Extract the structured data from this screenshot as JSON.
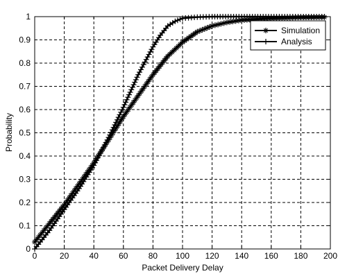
{
  "chart_data": {
    "type": "line",
    "title": "",
    "xlabel": "Packet Delivery Delay",
    "ylabel": "Probability",
    "xlim": [
      0,
      200
    ],
    "ylim": [
      0,
      1
    ],
    "xticks": [
      "0",
      "20",
      "40",
      "60",
      "80",
      "100",
      "120",
      "140",
      "160",
      "180",
      "200"
    ],
    "yticks": [
      "0",
      "0.1",
      "0.2",
      "0.3",
      "0.4",
      "0.5",
      "0.6",
      "0.7",
      "0.8",
      "0.9",
      "1"
    ],
    "grid": "on (dashed)",
    "legend_position": "top-right",
    "series": [
      {
        "name": "Simulation",
        "marker": "star",
        "x": [
          0,
          5,
          10,
          20,
          30,
          40,
          50,
          60,
          70,
          80,
          90,
          100,
          110,
          120,
          130,
          140,
          160,
          180,
          196
        ],
        "y": [
          0.03,
          0.07,
          0.11,
          0.19,
          0.28,
          0.37,
          0.47,
          0.57,
          0.66,
          0.75,
          0.83,
          0.89,
          0.935,
          0.96,
          0.975,
          0.985,
          0.993,
          0.997,
          0.998
        ]
      },
      {
        "name": "Analysis",
        "marker": "plus",
        "x": [
          0,
          5,
          10,
          20,
          30,
          40,
          50,
          60,
          70,
          80,
          85,
          90,
          95,
          100,
          110,
          120,
          140,
          160,
          180,
          196
        ],
        "y": [
          0.0,
          0.04,
          0.08,
          0.17,
          0.26,
          0.36,
          0.48,
          0.61,
          0.75,
          0.87,
          0.92,
          0.96,
          0.98,
          0.993,
          0.998,
          1.0,
          1.0,
          1.0,
          1.0,
          1.0
        ]
      }
    ]
  }
}
